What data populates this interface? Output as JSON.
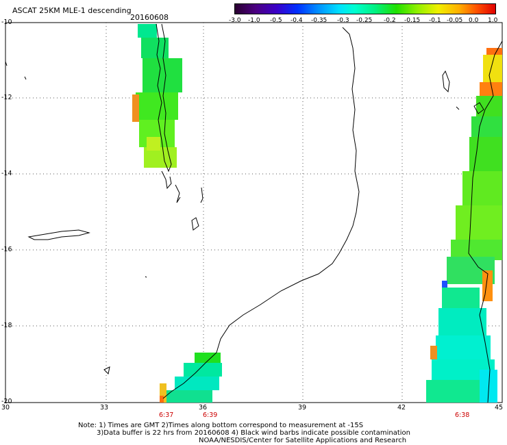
{
  "header": {
    "title": "ASCAT 25KM MLE-1 descending",
    "date": "20160608"
  },
  "colorbar": {
    "labels": [
      "-3.0",
      "-1.0",
      "-0.5",
      "-0.4",
      "-0.35",
      "-0.3",
      "-0.25",
      "-0.2",
      "-0.15",
      "-0.1",
      "-0.05",
      "0.0",
      "1.0"
    ]
  },
  "axes": {
    "x_ticks": [
      "30",
      "33",
      "36",
      "39",
      "42",
      "45"
    ],
    "y_ticks": [
      "-10",
      "-12",
      "-14",
      "-16",
      "-18",
      "-20"
    ]
  },
  "pass_times": [
    "6:37",
    "6:39",
    "6:38"
  ],
  "notes": [
    "Note: 1) Times are GMT 2)Times along bottom correspond to measurement at -15S",
    "3)Data buffer is 22 hrs from 20160608 4) Black wind barbs indicate possible contamination",
    "NOAA/NESDIS/Center for Satellite Applications and Research"
  ]
}
